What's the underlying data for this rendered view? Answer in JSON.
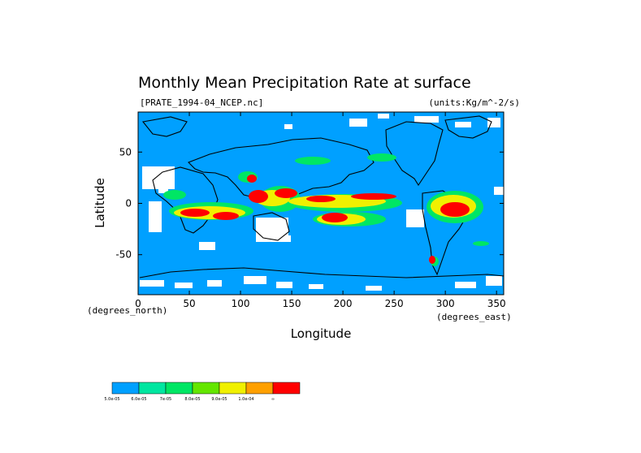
{
  "chart_data": {
    "type": "heatmap",
    "title": "Monthly Mean Precipitation Rate at surface",
    "file_label": "[PRATE_1994-04_NCEP.nc]",
    "units_label": "(units:Kg/m^-2/s)",
    "xlabel": "Longitude",
    "ylabel": "Latitude",
    "x_unit_label": "(degrees_east)",
    "y_unit_label": "(degrees_north)",
    "xlim": [
      0,
      357
    ],
    "ylim": [
      -89,
      89
    ],
    "x_ticks": [
      0,
      50,
      100,
      150,
      200,
      250,
      300,
      350
    ],
    "y_ticks": [
      50,
      0,
      -50
    ],
    "legend": {
      "placement": "bottom-left",
      "labels": [
        "5.0e-05",
        "6.0e-05",
        "7e-05",
        "8.0e-05",
        "9.0e-05",
        "1.0e-04",
        "∞"
      ],
      "colors": [
        "#00a0ff",
        "#00e6a0",
        "#00e664",
        "#64e600",
        "#f0f000",
        "#ffa000",
        "#ff0000"
      ]
    },
    "ocean_color": "#00a0ff",
    "no_data_color": "#ffffff",
    "precip_regions": [
      {
        "lon": [
          10,
          40
        ],
        "lat": [
          -18,
          -5
        ],
        "level": "high"
      },
      {
        "lon": [
          40,
          100
        ],
        "lat": [
          -15,
          -5
        ],
        "level": "high"
      },
      {
        "lon": [
          108,
          142
        ],
        "lat": [
          -5,
          8
        ],
        "level": "high"
      },
      {
        "lon": [
          145,
          200
        ],
        "lat": [
          2,
          10
        ],
        "level": "high"
      },
      {
        "lon": [
          205,
          255
        ],
        "lat": [
          3,
          8
        ],
        "level": "high"
      },
      {
        "lon": [
          170,
          205
        ],
        "lat": [
          -18,
          -10
        ],
        "level": "high"
      },
      {
        "lon": [
          290,
          320
        ],
        "lat": [
          -12,
          0
        ],
        "level": "high"
      },
      {
        "lon": [
          110,
          125
        ],
        "lat": [
          20,
          28
        ],
        "level": "high"
      },
      {
        "lon": [
          160,
          200
        ],
        "lat": [
          38,
          44
        ],
        "level": "mid"
      },
      {
        "lon": [
          280,
          300
        ],
        "lat": [
          -58,
          -50
        ],
        "level": "high"
      }
    ]
  }
}
